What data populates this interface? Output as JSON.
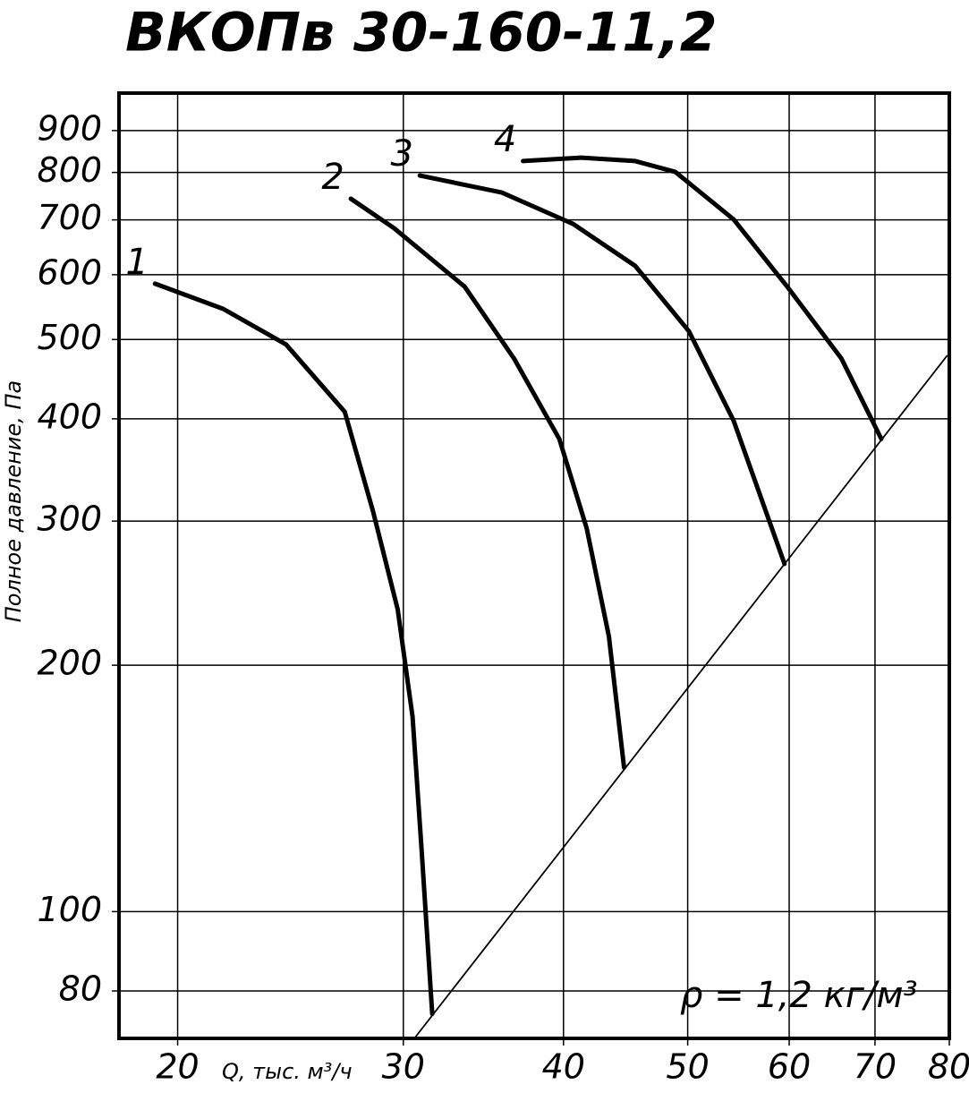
{
  "chart_data": {
    "type": "line",
    "title": "ВКОПв 30-160-11,2",
    "x_label": "Q, тыс. м³/ч",
    "y_label": "Полное давление, Па",
    "annotation": "ρ = 1,2 кг/м³",
    "x_log": true,
    "y_log": true,
    "grid": true,
    "color": "#000000",
    "xlim": [
      18,
      80
    ],
    "ylim": [
      70,
      1000
    ],
    "xticks": [
      20,
      30,
      40,
      50,
      60,
      70,
      80
    ],
    "yticks": [
      80,
      100,
      200,
      300,
      400,
      500,
      600,
      700,
      800,
      900
    ],
    "series": [
      {
        "name": "1",
        "x": [
          19.2,
          21.7,
          24.3,
          27.0,
          28.4,
          29.7,
          30.5,
          31.0,
          31.6
        ],
        "values": [
          585,
          545,
          493,
          408,
          309,
          234,
          173,
          119,
          75
        ]
      },
      {
        "name": "2",
        "x": [
          27.3,
          29.5,
          33.5,
          36.6,
          39.7,
          41.7,
          43.4,
          44.6
        ],
        "values": [
          743,
          684,
          580,
          474,
          378,
          294,
          217,
          150
        ]
      },
      {
        "name": "3",
        "x": [
          30.9,
          35.8,
          40.7,
          45.5,
          50.1,
          54.3,
          59.5
        ],
        "values": [
          793,
          756,
          692,
          615,
          512,
          398,
          266
        ]
      },
      {
        "name": "4",
        "x": [
          37.2,
          41.3,
          45.5,
          48.9,
          54.3,
          59.8,
          65.9,
          70.8
        ],
        "values": [
          826,
          834,
          826,
          801,
          701,
          580,
          474,
          378
        ]
      }
    ],
    "system_curve": {
      "x": [
        30.6,
        79.7
      ],
      "values": [
        70,
        478
      ]
    }
  }
}
